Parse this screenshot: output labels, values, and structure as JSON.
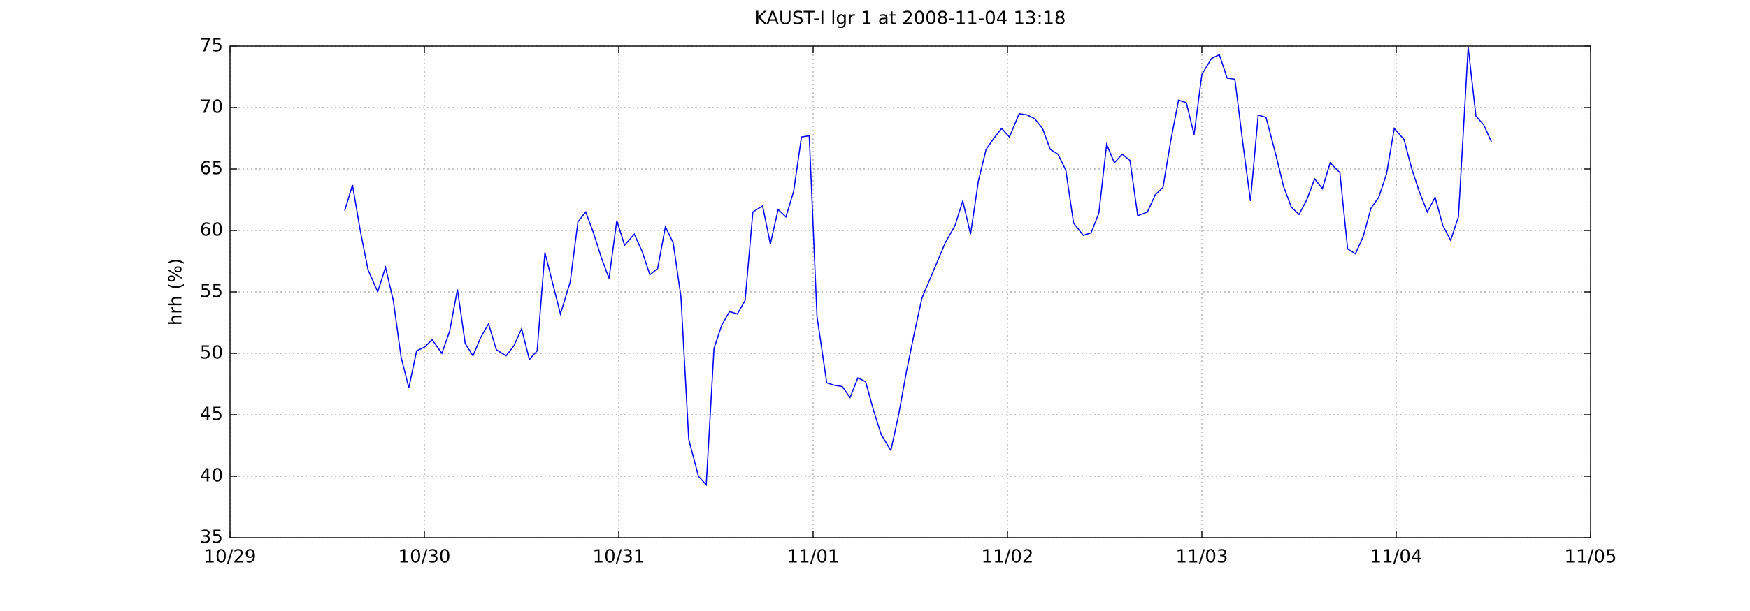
{
  "chart_data": {
    "type": "line",
    "title": "KAUST-I lgr 1 at 2008-11-04 13:18",
    "y_label": "hrh (%)",
    "color": "#0000ff",
    "grid": true,
    "xlim": [
      0,
      7
    ],
    "xticks": [
      {
        "value": 0,
        "label": "10/29"
      },
      {
        "value": 1,
        "label": "10/30"
      },
      {
        "value": 2,
        "label": "10/31"
      },
      {
        "value": 3,
        "label": "11/01"
      },
      {
        "value": 4,
        "label": "11/02"
      },
      {
        "value": 5,
        "label": "11/03"
      },
      {
        "value": 6,
        "label": "11/04"
      },
      {
        "value": 7,
        "label": "11/05"
      }
    ],
    "ylim": [
      35,
      75
    ],
    "yticks": [
      35,
      40,
      45,
      50,
      55,
      60,
      65,
      70,
      75
    ],
    "x": [
      0.59,
      0.63,
      0.67,
      0.71,
      0.76,
      0.8,
      0.84,
      0.88,
      0.92,
      0.96,
      1.0,
      1.04,
      1.09,
      1.13,
      1.17,
      1.21,
      1.25,
      1.29,
      1.33,
      1.37,
      1.42,
      1.46,
      1.5,
      1.54,
      1.58,
      1.62,
      1.66,
      1.7,
      1.75,
      1.79,
      1.83,
      1.87,
      1.91,
      1.95,
      1.99,
      2.03,
      2.08,
      2.12,
      2.16,
      2.2,
      2.24,
      2.28,
      2.32,
      2.36,
      2.41,
      2.45,
      2.49,
      2.53,
      2.57,
      2.61,
      2.65,
      2.69,
      2.74,
      2.78,
      2.82,
      2.86,
      2.9,
      2.94,
      2.98,
      3.02,
      3.07,
      3.11,
      3.15,
      3.19,
      3.23,
      3.27,
      3.31,
      3.35,
      3.4,
      3.44,
      3.48,
      3.52,
      3.56,
      3.6,
      3.64,
      3.68,
      3.73,
      3.77,
      3.81,
      3.85,
      3.89,
      3.93,
      3.97,
      4.01,
      4.06,
      4.1,
      4.14,
      4.18,
      4.22,
      4.26,
      4.3,
      4.34,
      4.39,
      4.43,
      4.47,
      4.51,
      4.55,
      4.59,
      4.63,
      4.67,
      4.72,
      4.76,
      4.8,
      4.84,
      4.88,
      4.92,
      4.96,
      5.0,
      5.05,
      5.09,
      5.13,
      5.17,
      5.21,
      5.25,
      5.29,
      5.33,
      5.38,
      5.42,
      5.46,
      5.5,
      5.54,
      5.58,
      5.62,
      5.66,
      5.71,
      5.75,
      5.79,
      5.83,
      5.87,
      5.91,
      5.95,
      5.99,
      6.04,
      6.08,
      6.12,
      6.16,
      6.2,
      6.24,
      6.28,
      6.32,
      6.37,
      6.41,
      6.45,
      6.49
    ],
    "values": [
      61.6,
      63.7,
      60,
      56.8,
      55,
      57,
      54.3,
      49.7,
      47.2,
      50.2,
      50.5,
      51.1,
      50,
      51.8,
      55.2,
      50.8,
      49.8,
      51.3,
      52.4,
      50.3,
      49.8,
      50.6,
      52,
      49.5,
      50.2,
      58.2,
      55.7,
      53.2,
      55.8,
      60.7,
      61.5,
      59.8,
      57.8,
      56.1,
      60.8,
      58.8,
      59.7,
      58.3,
      56.4,
      56.9,
      60.3,
      59,
      54.6,
      43,
      40,
      39.3,
      50.4,
      52.3,
      53.4,
      53.2,
      54.3,
      61.5,
      62,
      58.9,
      61.7,
      61.1,
      63.2,
      67.6,
      67.7,
      53,
      47.6,
      47.4,
      47.3,
      46.4,
      48,
      47.7,
      45.4,
      43.4,
      42.1,
      45,
      48.5,
      51.6,
      54.5,
      56,
      57.5,
      59,
      60.4,
      62.4,
      59.7,
      64,
      66.6,
      67.5,
      68.3,
      67.6,
      69.5,
      69.4,
      69.1,
      68.3,
      66.6,
      66.2,
      64.9,
      60.6,
      59.6,
      59.8,
      61.4,
      67,
      65.5,
      66.2,
      65.7,
      61.2,
      61.5,
      62.9,
      63.5,
      67.3,
      70.6,
      70.4,
      67.8,
      72.7,
      74,
      74.3,
      72.4,
      72.3,
      67.2,
      62.4,
      69.4,
      69.2,
      66.2,
      63.6,
      61.9,
      61.3,
      62.5,
      64.2,
      63.4,
      65.5,
      64.7,
      58.5,
      58.1,
      59.5,
      61.8,
      62.7,
      64.6,
      68.3,
      67.4,
      65,
      63.1,
      61.5,
      62.7,
      60.4,
      59.2,
      61.1,
      74.9,
      69.3,
      68.6,
      67.2
    ]
  }
}
